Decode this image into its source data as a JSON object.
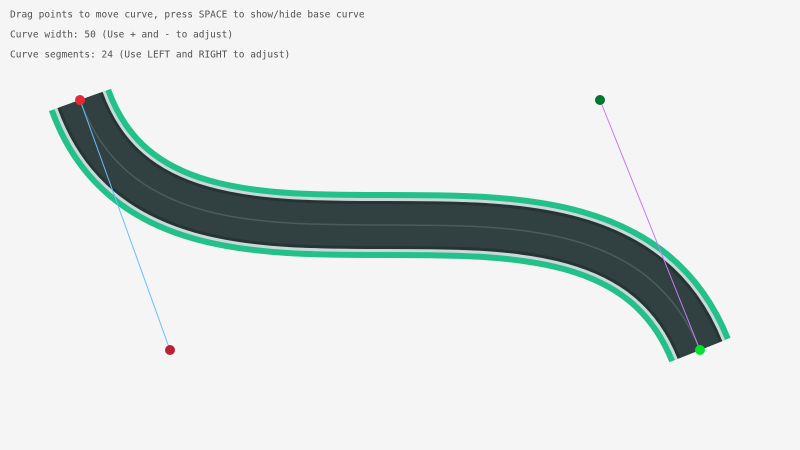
{
  "hud": {
    "lines": [
      "Drag points to move curve, press SPACE to show/hide base curve",
      "Curve width: 50 (Use + and - to adjust)",
      "Curve segments: 24 (Use LEFT and RIGHT to adjust)"
    ]
  }
}
